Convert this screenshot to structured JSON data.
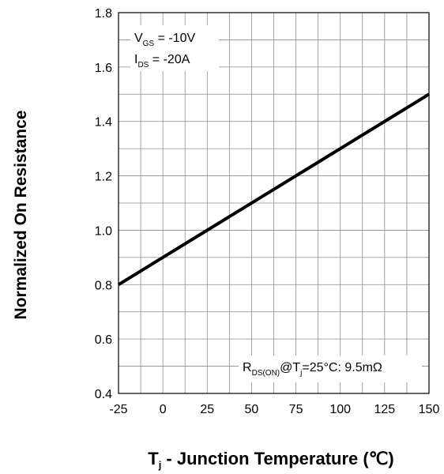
{
  "chart_data": {
    "type": "line",
    "xlabel": {
      "main": "T",
      "sub": "j",
      "rest": " - Junction Temperature (℃)"
    },
    "ylabel": "Normalized On Resistance",
    "xlim": [
      -25,
      150
    ],
    "ylim": [
      0.4,
      1.8
    ],
    "x_ticks": [
      "-25",
      "0",
      "25",
      "50",
      "75",
      "100",
      "125",
      "150"
    ],
    "y_ticks": [
      "0.4",
      "0.6",
      "0.8",
      "1.0",
      "1.2",
      "1.4",
      "1.6",
      "1.8"
    ],
    "grid": true,
    "series": [
      {
        "x": [
          -25,
          150
        ],
        "y": [
          0.8,
          1.5
        ],
        "color": "#000000"
      }
    ],
    "annotations": {
      "vgs": {
        "main": "V",
        "sub": "GS",
        "rest": " = -10V"
      },
      "ids": {
        "main": "I",
        "sub": "DS",
        "rest": " = -20A"
      },
      "rds": {
        "main": "R",
        "sub": "DS(ON)",
        "mid": "@T",
        "sub2": "j",
        "rest": "=25°C: 9.5mΩ"
      }
    }
  }
}
